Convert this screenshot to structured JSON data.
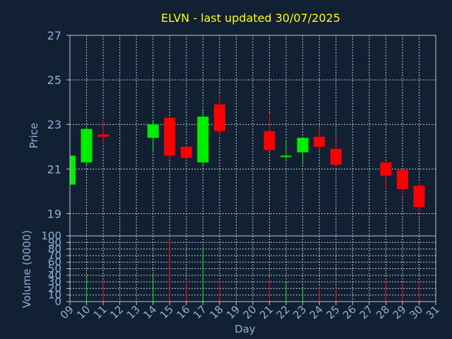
{
  "chart_data": {
    "type": "candlestick",
    "title": "ELVN - last updated 30/07/2025",
    "xlabel": "Day",
    "ylabel": "Price",
    "volume_ylabel": "Volume (0000)",
    "price_ylim": [
      18,
      27
    ],
    "price_ticks": [
      19,
      21,
      23,
      25,
      27
    ],
    "volume_ylim": [
      0,
      100
    ],
    "volume_ticks": [
      0,
      10,
      20,
      30,
      40,
      50,
      60,
      70,
      80,
      90,
      100
    ],
    "x_ticks": [
      "09",
      "10",
      "11",
      "12",
      "13",
      "14",
      "15",
      "16",
      "17",
      "18",
      "19",
      "20",
      "21",
      "22",
      "23",
      "24",
      "25",
      "26",
      "27",
      "28",
      "29",
      "30",
      "31"
    ],
    "grid": true,
    "colors": {
      "background": "#112033",
      "title": "#ffff00",
      "axis_text": "#8db0d6",
      "up": "#00ee00",
      "down": "#ff0000",
      "grid": "#ffffff",
      "frame": "#b8c4d2"
    },
    "candles": [
      {
        "day": "09",
        "open": 20.3,
        "high": 21.6,
        "low": 20.2,
        "close": 21.6,
        "volume": 0
      },
      {
        "day": "10",
        "open": 21.3,
        "high": 22.9,
        "low": 21.1,
        "close": 22.8,
        "volume": 38
      },
      {
        "day": "11",
        "open": 22.55,
        "high": 23.2,
        "low": 22.1,
        "close": 22.45,
        "volume": 34
      },
      {
        "day": "14",
        "open": 22.4,
        "high": 23.2,
        "low": 21.8,
        "close": 23.0,
        "volume": 38
      },
      {
        "day": "15",
        "open": 23.3,
        "high": 23.4,
        "low": 21.4,
        "close": 21.6,
        "volume": 95
      },
      {
        "day": "16",
        "open": 22.0,
        "high": 22.1,
        "low": 21.4,
        "close": 21.5,
        "volume": 33
      },
      {
        "day": "17",
        "open": 21.3,
        "high": 23.7,
        "low": 21.1,
        "close": 23.35,
        "volume": 80
      },
      {
        "day": "18",
        "open": 23.9,
        "high": 24.4,
        "low": 22.5,
        "close": 22.7,
        "volume": 34
      },
      {
        "day": "21",
        "open": 22.7,
        "high": 23.5,
        "low": 21.8,
        "close": 21.85,
        "volume": 37
      },
      {
        "day": "22",
        "open": 21.6,
        "high": 22.3,
        "low": 21.4,
        "close": 21.6,
        "volume": 29
      },
      {
        "day": "23",
        "open": 21.75,
        "high": 22.4,
        "low": 21.2,
        "close": 22.4,
        "volume": 19
      },
      {
        "day": "24",
        "open": 22.45,
        "high": 22.9,
        "low": 21.8,
        "close": 22.0,
        "volume": 25
      },
      {
        "day": "25",
        "open": 21.9,
        "high": 22.4,
        "low": 21.1,
        "close": 21.2,
        "volume": 22
      },
      {
        "day": "28",
        "open": 21.3,
        "high": 21.3,
        "low": 20.1,
        "close": 20.7,
        "volume": 34
      },
      {
        "day": "29",
        "open": 20.95,
        "high": 21.0,
        "low": 19.8,
        "close": 20.1,
        "volume": 26
      },
      {
        "day": "30",
        "open": 20.25,
        "high": 20.4,
        "low": 19.0,
        "close": 19.3,
        "volume": 31
      }
    ]
  }
}
